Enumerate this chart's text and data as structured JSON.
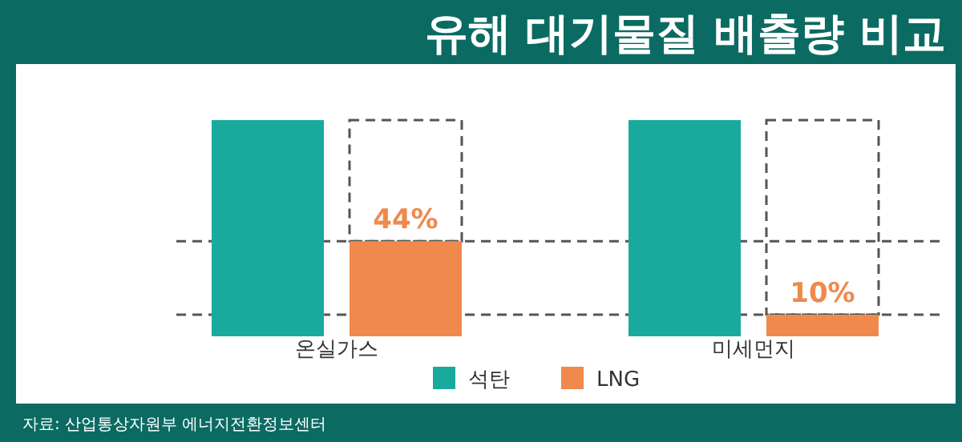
{
  "chart_data": {
    "type": "bar",
    "title": "유해 대기물질 배출량 비교",
    "categories": [
      "온실가스",
      "미세먼지"
    ],
    "legend": "bottom",
    "series": [
      {
        "name": "석탄",
        "color": "#1aaa9d",
        "values": [
          100,
          100
        ]
      },
      {
        "name": "LNG",
        "color": "#f0894c",
        "values": [
          44,
          10
        ],
        "value_labels": [
          "44%",
          "10%"
        ]
      }
    ],
    "ref_lines": [
      {
        "axis": "y",
        "value": 44,
        "color": "#555555",
        "line_style": "dashed"
      },
      {
        "axis": "y",
        "value": 10,
        "color": "#555555",
        "line_style": "dashed"
      }
    ],
    "annotations": [
      "자료: 산업통상자원부 에너지전환정보센터"
    ]
  }
}
